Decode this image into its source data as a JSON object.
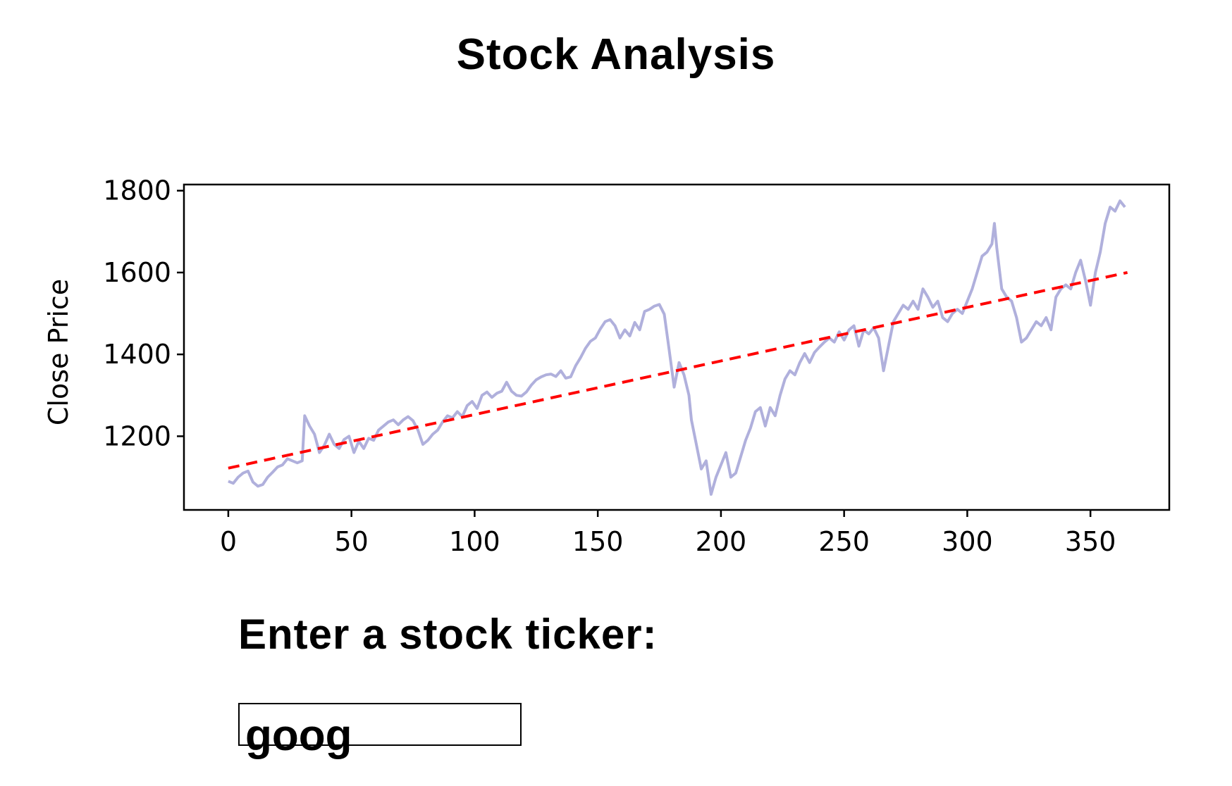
{
  "page": {
    "title": "Stock Analysis"
  },
  "form": {
    "ticker_label": "Enter a stock ticker:",
    "ticker_value": "goog"
  },
  "colors": {
    "price_line": "#b0b0dc",
    "trend_line": "#ff0000",
    "axes": "#000000"
  },
  "chart_data": {
    "type": "line",
    "title": "",
    "xlabel": "",
    "ylabel": "Close Price",
    "xlim": [
      -18,
      382
    ],
    "ylim": [
      1020,
      1815
    ],
    "x_ticks": [
      0,
      50,
      100,
      150,
      200,
      250,
      300,
      350
    ],
    "y_ticks": [
      1200,
      1400,
      1600,
      1800
    ],
    "grid": false,
    "series": [
      {
        "style": "solid",
        "color": "#b0b0dc",
        "points": [
          [
            0,
            1090
          ],
          [
            2,
            1085
          ],
          [
            4,
            1100
          ],
          [
            6,
            1110
          ],
          [
            8,
            1115
          ],
          [
            10,
            1088
          ],
          [
            12,
            1078
          ],
          [
            14,
            1082
          ],
          [
            16,
            1100
          ],
          [
            18,
            1112
          ],
          [
            20,
            1125
          ],
          [
            22,
            1130
          ],
          [
            24,
            1145
          ],
          [
            26,
            1140
          ],
          [
            28,
            1135
          ],
          [
            30,
            1140
          ],
          [
            31,
            1250
          ],
          [
            33,
            1225
          ],
          [
            35,
            1205
          ],
          [
            37,
            1160
          ],
          [
            39,
            1178
          ],
          [
            41,
            1205
          ],
          [
            43,
            1180
          ],
          [
            45,
            1170
          ],
          [
            47,
            1192
          ],
          [
            49,
            1200
          ],
          [
            51,
            1160
          ],
          [
            53,
            1188
          ],
          [
            55,
            1170
          ],
          [
            57,
            1195
          ],
          [
            59,
            1190
          ],
          [
            61,
            1215
          ],
          [
            63,
            1225
          ],
          [
            65,
            1235
          ],
          [
            67,
            1240
          ],
          [
            69,
            1228
          ],
          [
            71,
            1240
          ],
          [
            73,
            1248
          ],
          [
            75,
            1238
          ],
          [
            77,
            1215
          ],
          [
            79,
            1180
          ],
          [
            81,
            1190
          ],
          [
            83,
            1205
          ],
          [
            85,
            1215
          ],
          [
            87,
            1235
          ],
          [
            89,
            1250
          ],
          [
            91,
            1245
          ],
          [
            93,
            1260
          ],
          [
            95,
            1248
          ],
          [
            97,
            1275
          ],
          [
            99,
            1285
          ],
          [
            101,
            1268
          ],
          [
            103,
            1300
          ],
          [
            105,
            1308
          ],
          [
            107,
            1295
          ],
          [
            109,
            1305
          ],
          [
            111,
            1310
          ],
          [
            113,
            1332
          ],
          [
            115,
            1310
          ],
          [
            117,
            1300
          ],
          [
            119,
            1298
          ],
          [
            121,
            1308
          ],
          [
            123,
            1325
          ],
          [
            125,
            1338
          ],
          [
            127,
            1345
          ],
          [
            129,
            1350
          ],
          [
            131,
            1352
          ],
          [
            133,
            1346
          ],
          [
            135,
            1360
          ],
          [
            137,
            1342
          ],
          [
            139,
            1345
          ],
          [
            141,
            1372
          ],
          [
            143,
            1392
          ],
          [
            145,
            1415
          ],
          [
            147,
            1432
          ],
          [
            149,
            1440
          ],
          [
            151,
            1462
          ],
          [
            153,
            1480
          ],
          [
            155,
            1485
          ],
          [
            157,
            1470
          ],
          [
            159,
            1440
          ],
          [
            161,
            1460
          ],
          [
            163,
            1445
          ],
          [
            165,
            1478
          ],
          [
            167,
            1460
          ],
          [
            169,
            1505
          ],
          [
            171,
            1510
          ],
          [
            173,
            1518
          ],
          [
            175,
            1522
          ],
          [
            177,
            1498
          ],
          [
            179,
            1410
          ],
          [
            181,
            1320
          ],
          [
            183,
            1380
          ],
          [
            185,
            1350
          ],
          [
            187,
            1300
          ],
          [
            188,
            1240
          ],
          [
            190,
            1180
          ],
          [
            192,
            1120
          ],
          [
            194,
            1140
          ],
          [
            196,
            1058
          ],
          [
            198,
            1100
          ],
          [
            200,
            1130
          ],
          [
            202,
            1160
          ],
          [
            204,
            1100
          ],
          [
            206,
            1110
          ],
          [
            208,
            1150
          ],
          [
            210,
            1190
          ],
          [
            212,
            1220
          ],
          [
            214,
            1260
          ],
          [
            216,
            1270
          ],
          [
            218,
            1225
          ],
          [
            220,
            1270
          ],
          [
            222,
            1250
          ],
          [
            224,
            1300
          ],
          [
            226,
            1340
          ],
          [
            228,
            1360
          ],
          [
            230,
            1350
          ],
          [
            232,
            1380
          ],
          [
            234,
            1402
          ],
          [
            236,
            1380
          ],
          [
            238,
            1405
          ],
          [
            240,
            1418
          ],
          [
            242,
            1430
          ],
          [
            244,
            1440
          ],
          [
            246,
            1430
          ],
          [
            248,
            1455
          ],
          [
            250,
            1435
          ],
          [
            252,
            1460
          ],
          [
            254,
            1470
          ],
          [
            256,
            1420
          ],
          [
            258,
            1460
          ],
          [
            260,
            1450
          ],
          [
            262,
            1465
          ],
          [
            264,
            1440
          ],
          [
            266,
            1360
          ],
          [
            268,
            1420
          ],
          [
            270,
            1480
          ],
          [
            272,
            1500
          ],
          [
            274,
            1520
          ],
          [
            276,
            1510
          ],
          [
            278,
            1530
          ],
          [
            280,
            1510
          ],
          [
            282,
            1560
          ],
          [
            284,
            1540
          ],
          [
            286,
            1515
          ],
          [
            288,
            1530
          ],
          [
            290,
            1490
          ],
          [
            292,
            1480
          ],
          [
            294,
            1500
          ],
          [
            296,
            1510
          ],
          [
            298,
            1500
          ],
          [
            300,
            1530
          ],
          [
            302,
            1560
          ],
          [
            304,
            1600
          ],
          [
            306,
            1640
          ],
          [
            308,
            1650
          ],
          [
            310,
            1670
          ],
          [
            311,
            1720
          ],
          [
            312,
            1660
          ],
          [
            314,
            1560
          ],
          [
            316,
            1540
          ],
          [
            318,
            1530
          ],
          [
            320,
            1490
          ],
          [
            322,
            1430
          ],
          [
            324,
            1440
          ],
          [
            326,
            1460
          ],
          [
            328,
            1480
          ],
          [
            330,
            1470
          ],
          [
            332,
            1490
          ],
          [
            334,
            1460
          ],
          [
            336,
            1540
          ],
          [
            338,
            1560
          ],
          [
            340,
            1570
          ],
          [
            342,
            1560
          ],
          [
            344,
            1600
          ],
          [
            346,
            1630
          ],
          [
            348,
            1580
          ],
          [
            350,
            1520
          ],
          [
            352,
            1600
          ],
          [
            354,
            1650
          ],
          [
            356,
            1720
          ],
          [
            358,
            1760
          ],
          [
            360,
            1750
          ],
          [
            362,
            1775
          ],
          [
            364,
            1760
          ]
        ]
      },
      {
        "style": "dashed",
        "color": "#ff0000",
        "points": [
          [
            0,
            1122
          ],
          [
            365,
            1600
          ]
        ]
      }
    ]
  }
}
